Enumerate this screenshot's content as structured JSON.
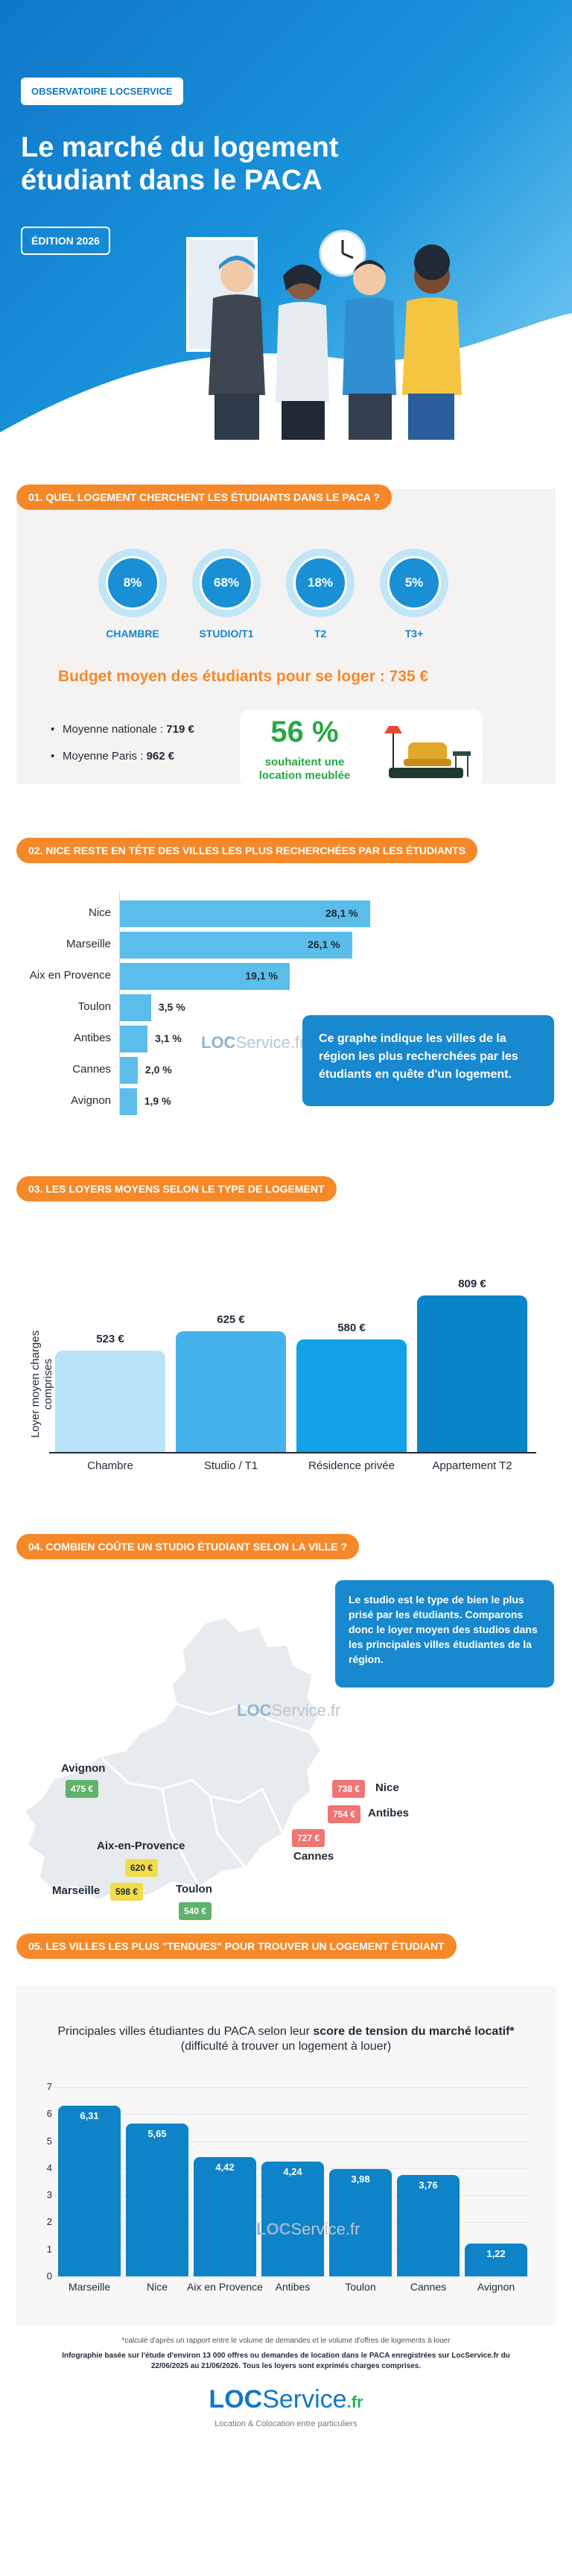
{
  "hero": {
    "badge": "OBSERVATOIRE LOCSERVICE",
    "title": "Le marché du logement étudiant dans le PACA",
    "edition": "ÉDITION 2026"
  },
  "section1": {
    "heading": "01. QUEL LOGEMENT CHERCHENT LES ÉTUDIANTS DANS LE PACA ?",
    "types": [
      {
        "label": "CHAMBRE",
        "value": "8%"
      },
      {
        "label": "STUDIO/T1",
        "value": "68%"
      },
      {
        "label": "T2",
        "value": "18%"
      },
      {
        "label": "T3+",
        "value": "5%"
      }
    ],
    "budget": "Budget moyen des étudiants pour se loger : 735 €",
    "national_label": "Moyenne nationale : ",
    "national_value": "719 €",
    "paris_label": "Moyenne Paris : ",
    "paris_value": "962 €",
    "furnished_pct": "56 %",
    "furnished_label": "souhaitent une location meublée"
  },
  "section2": {
    "heading": "02. NICE RESTE EN TÊTE DES VILLES LES PLUS RECHERCHÉES PAR LES ÉTUDIANTS",
    "note": "Ce graphe indique les villes de la région les plus recherchées par les étudiants en quête d'un logement."
  },
  "section3": {
    "heading": "03. LES LOYERS MOYENS SELON LE TYPE DE LOGEMENT",
    "ylabel": "Loyer moyen charges comprises"
  },
  "section4": {
    "heading": "04. COMBIEN COÛTE UN STUDIO ÉTUDIANT SELON LA VILLE ?",
    "note": "Le studio est le type de bien le plus prisé par les étudiants. Comparons donc le loyer moyen des studios dans les principales villes étudiantes de la région.",
    "cities": [
      {
        "name": "Avignon",
        "price": "475 €",
        "color": "#5fb26a"
      },
      {
        "name": "Aix-en-Provence",
        "price": "620 €",
        "color": "#f2dc4a"
      },
      {
        "name": "Marseille",
        "price": "598 €",
        "color": "#f2dc4a"
      },
      {
        "name": "Toulon",
        "price": "540 €",
        "color": "#5fb26a"
      },
      {
        "name": "Nice",
        "price": "738 €",
        "color": "#ef7473"
      },
      {
        "name": "Antibes",
        "price": "754 €",
        "color": "#ef7473"
      },
      {
        "name": "Cannes",
        "price": "727 €",
        "color": "#ef7473"
      }
    ]
  },
  "section5": {
    "heading": "05. LES VILLES LES PLUS \"TENDUES\" POUR TROUVER UN LOGEMENT ÉTUDIANT",
    "title_prefix": "Principales villes étudiantes du PACA selon leur ",
    "title_bold": "score de tension du marché locatif*",
    "title_suffix": " (difficulté à trouver un logement à louer)"
  },
  "watermark": {
    "loc": "LOC",
    "service": "Service",
    "fr": ".fr"
  },
  "footer": {
    "note": "*calculé d'après un rapport entre le volume de demandes et le volume d'offres de logements à louer",
    "source": "Infographie basée sur l'étude d'environ 13 000 offres ou demandes de location dans le PACA enregistrées sur LocService.fr du 22/06/2025 au 21/06/2026. Tous les loyers sont exprimés charges comprises.",
    "logo_loc": "LOC",
    "logo_service": "Service",
    "logo_fr": ".fr",
    "tagline": "Location & Colocation entre particuliers"
  },
  "chart_data": [
    {
      "type": "bar",
      "orientation": "horizontal",
      "categories": [
        "Nice",
        "Marseille",
        "Aix en Provence",
        "Toulon",
        "Antibes",
        "Cannes",
        "Avignon"
      ],
      "values": [
        28.1,
        26.1,
        19.1,
        3.5,
        3.1,
        2.0,
        1.9
      ],
      "labels": [
        "28,1 %",
        "26,1 %",
        "19,1 %",
        "3,5 %",
        "3,1 %",
        "2,0 %",
        "1,9 %"
      ],
      "color": "#5bbde9"
    },
    {
      "type": "bar",
      "categories": [
        "Chambre",
        "Studio / T1",
        "Résidence privée",
        "Appartement T2"
      ],
      "values": [
        523,
        625,
        580,
        809
      ],
      "labels": [
        "523 €",
        "625 €",
        "580 €",
        "809 €"
      ],
      "colors": [
        "#b9e3f8",
        "#45b2ec",
        "#12a0e6",
        "#0a84c8"
      ],
      "ylabel": "Loyer moyen charges comprises"
    },
    {
      "type": "bar",
      "categories": [
        "Marseille",
        "Nice",
        "Aix en Provence",
        "Antibes",
        "Toulon",
        "Cannes",
        "Avignon"
      ],
      "values": [
        6.31,
        5.65,
        4.42,
        4.24,
        3.98,
        3.76,
        1.22
      ],
      "labels": [
        "6,31",
        "5,65",
        "4,42",
        "4,24",
        "3,98",
        "3,76",
        "1,22"
      ],
      "yticks": [
        0,
        1,
        2,
        3,
        4,
        5,
        6,
        7
      ],
      "ylim": [
        0,
        7
      ],
      "color": "#0f83c7"
    }
  ]
}
